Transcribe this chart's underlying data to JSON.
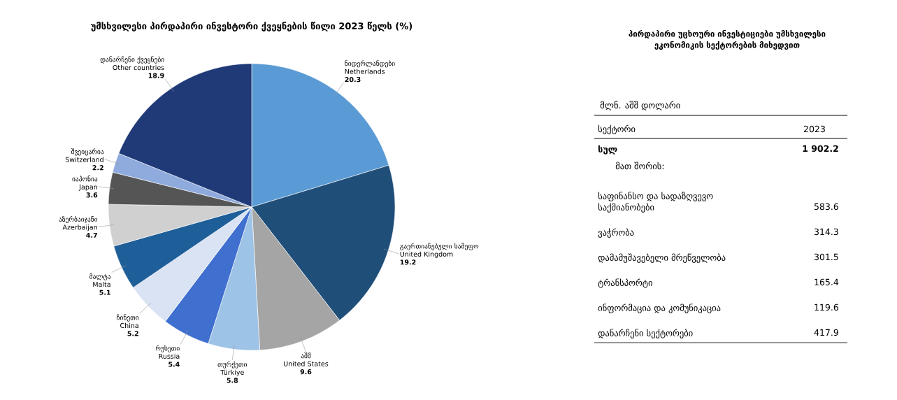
{
  "chart_data": [
    {
      "type": "pie",
      "title": "უმსხვილესი პირდაპირი ინვესტორი ქვეყნების წილი 2023 წელს (%)",
      "categories": [
        "ნიდერლანდები\nNetherlands",
        "გაერთიანებული სამეფო\nUnited Kingdom",
        "აშშ\nUnited States",
        "თურქეთი\nTürkiye",
        "რუსეთი\nRussia",
        "ჩინეთი\nChina",
        "მალტა\nMalta",
        "აზერბაიჯანი\nAzerbaijan",
        "იაპონია\nJapan",
        "შვეიცარია\nSwitzerland",
        "დანარჩენი ქვეყნები\nOther countries"
      ],
      "values": [
        20.3,
        19.2,
        9.6,
        5.8,
        5.4,
        5.2,
        5.1,
        4.7,
        3.6,
        2.2,
        18.9
      ],
      "colors": [
        "#5b9bd5",
        "#1f4e79",
        "#a5a5a5",
        "#9dc3e6",
        "#3f6fcf",
        "#dae3f3",
        "#1f5f99",
        "#d0d0d0",
        "#555555",
        "#8faadc",
        "#203a78"
      ],
      "data_labels": true
    },
    {
      "type": "other",
      "title": "პირდაპირი უცხოური ინვესტიციები უმსხვილესი ეკონომიკის სექტორების მიხედვით",
      "annotations": [
        "მლნ. აშშ დოლარი",
        "სექტორი",
        "2023",
        "მათ შორის:"
      ],
      "categories": [
        "სულ",
        "საფინანსო და სადაზღვევო საქმიანობები",
        "ვაჭრობა",
        "დამამუშავებელი მრეწველობა",
        "ტრანსპორტი",
        "ინფორმაცია და კომუნიკაცია",
        "დანარჩენი სექტორები"
      ],
      "values": [
        1902.2,
        583.6,
        314.3,
        301.5,
        165.4,
        119.6,
        417.9
      ],
      "value_labels": [
        "1 902.2",
        "583.6",
        "314.3",
        "301.5",
        "165.4",
        "119.6",
        "417.9"
      ]
    }
  ]
}
